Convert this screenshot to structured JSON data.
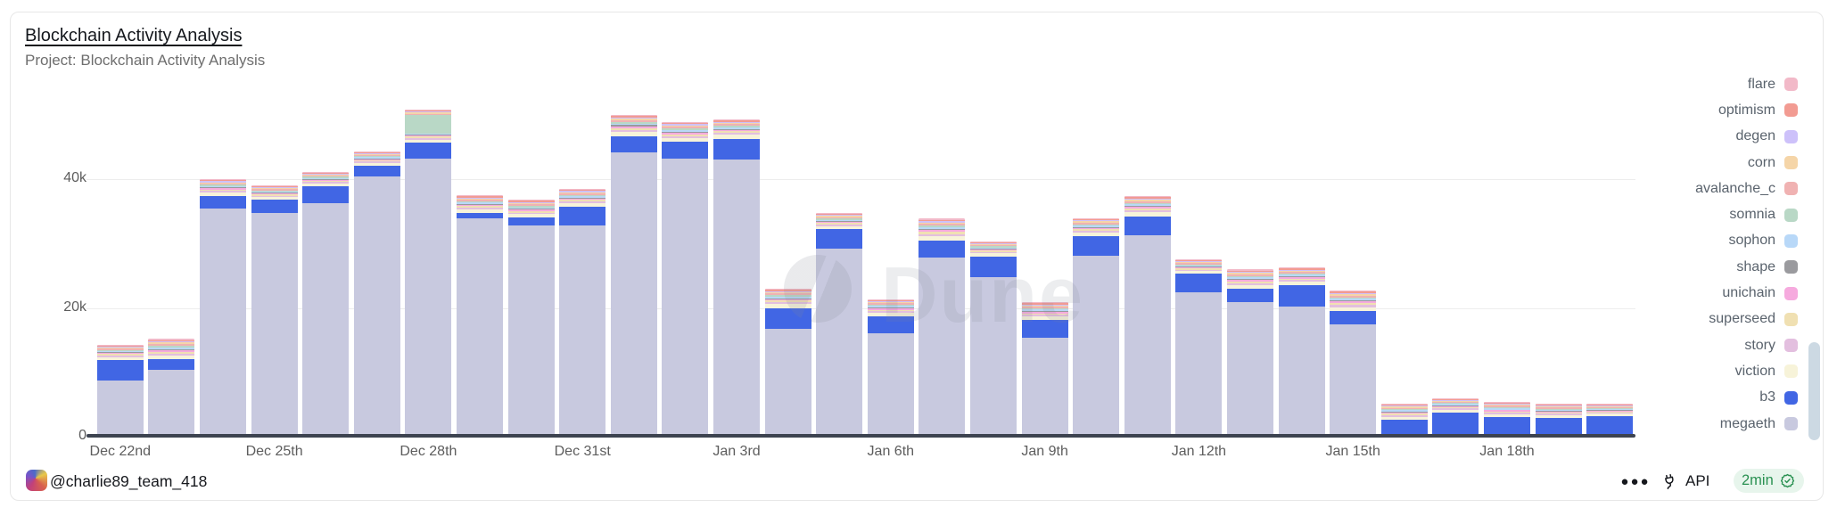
{
  "card": {
    "title": "Blockchain Activity Analysis",
    "subtitle": "Project: Blockchain Activity Analysis"
  },
  "watermark": {
    "text": "Dune"
  },
  "footer": {
    "handle": "@charlie89_team_418",
    "menu_label": "●●●",
    "api_label": "API",
    "refresh_badge": "2min",
    "badge_text_color": "#2a9152",
    "badge_bg_color": "#e7f5ec"
  },
  "chart_data": {
    "type": "bar",
    "stacked": true,
    "title": "Blockchain Activity Analysis",
    "xlabel": "",
    "ylabel": "",
    "n_bars": 30,
    "ylim": [
      0,
      58000
    ],
    "grid": "horizontal",
    "legend_position": "right",
    "legend_order_top_to_bottom": [
      "flare",
      "optimism",
      "degen",
      "corn",
      "avalanche_c",
      "somnia",
      "sophon",
      "shape",
      "unichain",
      "superseed",
      "story",
      "viction",
      "b3",
      "megaeth"
    ],
    "x_ticks": [
      {
        "index": 0,
        "label": "Dec 22nd"
      },
      {
        "index": 3,
        "label": "Dec 25th"
      },
      {
        "index": 6,
        "label": "Dec 28th"
      },
      {
        "index": 9,
        "label": "Dec 31st"
      },
      {
        "index": 12,
        "label": "Jan 3rd"
      },
      {
        "index": 15,
        "label": "Jan 6th"
      },
      {
        "index": 18,
        "label": "Jan 9th"
      },
      {
        "index": 21,
        "label": "Jan 12th"
      },
      {
        "index": 24,
        "label": "Jan 15th"
      },
      {
        "index": 27,
        "label": "Jan 18th"
      }
    ],
    "y_ticks": [
      {
        "value": 0,
        "label": "0"
      },
      {
        "value": 20000,
        "label": "20k"
      },
      {
        "value": 40000,
        "label": "40k"
      }
    ],
    "series": [
      {
        "name": "megaeth",
        "color": "#c8c9df",
        "values": [
          8700,
          10400,
          35400,
          34700,
          36300,
          40400,
          43200,
          33900,
          32800,
          32800,
          44100,
          43200,
          43000,
          16700,
          29200,
          16100,
          27800,
          24800,
          15400,
          28100,
          31300,
          22400,
          20900,
          20200,
          17400,
          100,
          200,
          200,
          200,
          300
        ]
      },
      {
        "name": "b3",
        "color": "#4166e4",
        "values": [
          3200,
          1600,
          2000,
          2100,
          2600,
          1700,
          2500,
          900,
          1200,
          2900,
          2600,
          2600,
          3300,
          3300,
          3000,
          2600,
          2700,
          3200,
          2700,
          3000,
          2900,
          2900,
          2100,
          3300,
          2100,
          2500,
          3500,
          2800,
          2700,
          2900
        ]
      },
      {
        "name": "viction",
        "color": "#f7f3d9",
        "values": [
          480,
          640,
          520,
          440,
          440,
          440,
          460,
          540,
          560,
          560,
          660,
          620,
          600,
          600,
          500,
          540,
          680,
          480,
          560,
          580,
          640,
          440,
          600,
          560,
          640,
          500,
          460,
          480,
          440,
          380
        ]
      },
      {
        "name": "story",
        "color": "#e3bfdf",
        "values": [
          220,
          290,
          230,
          200,
          200,
          200,
          210,
          240,
          250,
          250,
          300,
          280,
          270,
          270,
          230,
          240,
          310,
          220,
          250,
          260,
          290,
          200,
          270,
          250,
          290,
          230,
          210,
          220,
          200,
          170
        ]
      },
      {
        "name": "superseed",
        "color": "#f0e0b2",
        "values": [
          220,
          290,
          230,
          200,
          200,
          200,
          210,
          240,
          250,
          250,
          300,
          280,
          270,
          270,
          230,
          240,
          310,
          220,
          250,
          260,
          290,
          200,
          270,
          250,
          290,
          230,
          210,
          220,
          200,
          170
        ]
      },
      {
        "name": "unichain",
        "color": "#f6aade",
        "values": [
          190,
          260,
          210,
          180,
          180,
          180,
          180,
          220,
          220,
          220,
          260,
          250,
          240,
          240,
          200,
          220,
          270,
          190,
          220,
          230,
          260,
          180,
          240,
          220,
          260,
          200,
          180,
          190,
          180,
          150
        ]
      },
      {
        "name": "shape",
        "color": "#9a9a9e",
        "values": [
          120,
          160,
          130,
          110,
          110,
          110,
          120,
          140,
          140,
          140,
          170,
          160,
          150,
          150,
          130,
          140,
          170,
          120,
          140,
          150,
          160,
          110,
          150,
          140,
          160,
          130,
          120,
          120,
          110,
          100
        ]
      },
      {
        "name": "sophon",
        "color": "#b8d8f8",
        "values": [
          190,
          260,
          210,
          180,
          180,
          180,
          180,
          220,
          220,
          220,
          260,
          250,
          240,
          240,
          200,
          220,
          270,
          190,
          220,
          230,
          260,
          180,
          240,
          220,
          260,
          200,
          180,
          190,
          180,
          150
        ]
      },
      {
        "name": "somnia",
        "color": "#b9d8c6",
        "values": [
          170,
          220,
          180,
          150,
          150,
          150,
          2900,
          190,
          200,
          200,
          230,
          220,
          210,
          210,
          180,
          190,
          240,
          170,
          200,
          200,
          220,
          150,
          210,
          200,
          220,
          180,
          160,
          170,
          150,
          130
        ]
      },
      {
        "name": "avalanche_c",
        "color": "#f0b2b2",
        "values": [
          220,
          290,
          230,
          200,
          200,
          200,
          210,
          240,
          250,
          250,
          300,
          280,
          270,
          270,
          230,
          240,
          310,
          220,
          250,
          260,
          290,
          200,
          270,
          250,
          290,
          230,
          210,
          220,
          200,
          170
        ]
      },
      {
        "name": "corn",
        "color": "#f5d5a8",
        "values": [
          170,
          220,
          180,
          150,
          150,
          150,
          160,
          190,
          200,
          200,
          230,
          220,
          210,
          210,
          180,
          190,
          240,
          170,
          200,
          200,
          220,
          150,
          210,
          200,
          220,
          180,
          160,
          170,
          150,
          130
        ]
      },
      {
        "name": "degen",
        "color": "#cdc1fa",
        "values": [
          140,
          190,
          160,
          130,
          130,
          130,
          140,
          160,
          170,
          170,
          200,
          190,
          180,
          180,
          150,
          160,
          200,
          140,
          170,
          170,
          190,
          130,
          180,
          170,
          190,
          150,
          140,
          140,
          130,
          110
        ]
      },
      {
        "name": "optimism",
        "color": "#f29b92",
        "values": [
          140,
          190,
          160,
          130,
          130,
          130,
          140,
          160,
          170,
          170,
          200,
          190,
          180,
          180,
          150,
          160,
          200,
          140,
          170,
          170,
          190,
          130,
          180,
          170,
          190,
          150,
          140,
          140,
          130,
          110
        ]
      },
      {
        "name": "flare",
        "color": "#f2b9c8",
        "values": [
          140,
          190,
          160,
          130,
          130,
          130,
          140,
          160,
          170,
          170,
          200,
          190,
          180,
          180,
          150,
          160,
          200,
          140,
          170,
          170,
          190,
          130,
          180,
          170,
          190,
          150,
          140,
          140,
          130,
          110
        ]
      }
    ]
  }
}
